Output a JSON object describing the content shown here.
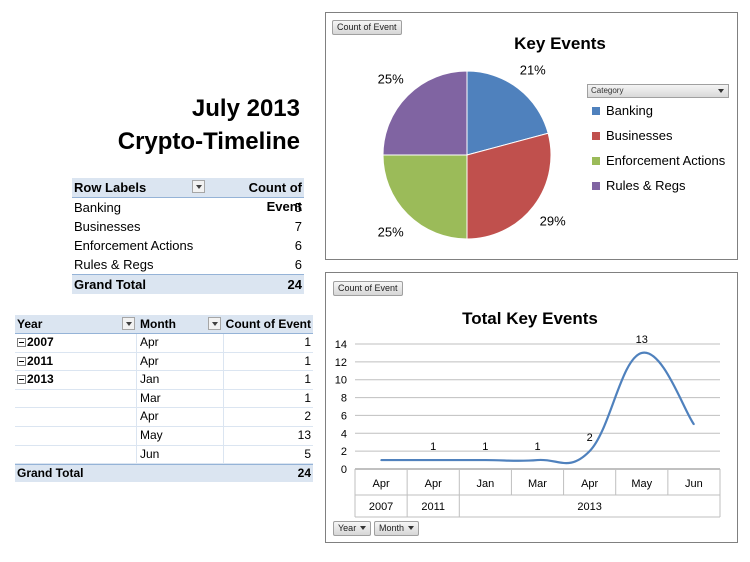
{
  "title": {
    "line1": "July 2013",
    "line2": "Crypto-Timeline"
  },
  "pivot1": {
    "headers": {
      "row_labels": "Row Labels",
      "count": "Count of Event"
    },
    "rows": [
      {
        "label": "Banking",
        "value": "5"
      },
      {
        "label": "Businesses",
        "value": "7"
      },
      {
        "label": "Enforcement Actions",
        "value": "6"
      },
      {
        "label": "Rules & Regs",
        "value": "6"
      }
    ],
    "grand_total": {
      "label": "Grand Total",
      "value": "24"
    }
  },
  "pivot2": {
    "headers": {
      "year": "Year",
      "month": "Month",
      "count": "Count of Event"
    },
    "rows": [
      {
        "year": "2007",
        "month": "Apr",
        "value": "1"
      },
      {
        "year": "2011",
        "month": "Apr",
        "value": "1"
      },
      {
        "year": "2013",
        "month": "Jan",
        "value": "1"
      },
      {
        "year": "",
        "month": "Mar",
        "value": "1"
      },
      {
        "year": "",
        "month": "Apr",
        "value": "2"
      },
      {
        "year": "",
        "month": "May",
        "value": "13"
      },
      {
        "year": "",
        "month": "Jun",
        "value": "5"
      }
    ],
    "grand_total": {
      "label": "Grand Total",
      "value": "24"
    }
  },
  "pie_box": {
    "field_button": "Count of Event",
    "category_header": "Category"
  },
  "line_box": {
    "field_button": "Count of Event",
    "year_button": "Year",
    "month_button": "Month"
  },
  "chart_data": [
    {
      "type": "pie",
      "title": "Key Events",
      "categories": [
        "Banking",
        "Businesses",
        "Enforcement Actions",
        "Rules & Regs"
      ],
      "values": [
        5,
        7,
        6,
        6
      ],
      "labels": [
        "21%",
        "29%",
        "25%",
        "25%"
      ],
      "colors": [
        "#4f81bd",
        "#c0504d",
        "#9bbb59",
        "#8064a2"
      ],
      "legend": "right"
    },
    {
      "type": "line",
      "title": "Total Key Events",
      "categories": [
        "Apr",
        "Apr",
        "Jan",
        "Mar",
        "Apr",
        "May",
        "Jun"
      ],
      "year_groups": [
        {
          "label": "2007",
          "span": 1
        },
        {
          "label": "2011",
          "span": 1
        },
        {
          "label": "2013",
          "span": 5
        }
      ],
      "values": [
        1,
        1,
        1,
        1,
        2,
        13,
        5
      ],
      "data_labels": [
        "",
        "1",
        "1",
        "1",
        "2",
        "13",
        ""
      ],
      "yticks": [
        "0",
        "2",
        "4",
        "6",
        "8",
        "10",
        "12",
        "14"
      ],
      "ylim": [
        0,
        14
      ],
      "grid": true,
      "color": "#4f81bd"
    }
  ]
}
